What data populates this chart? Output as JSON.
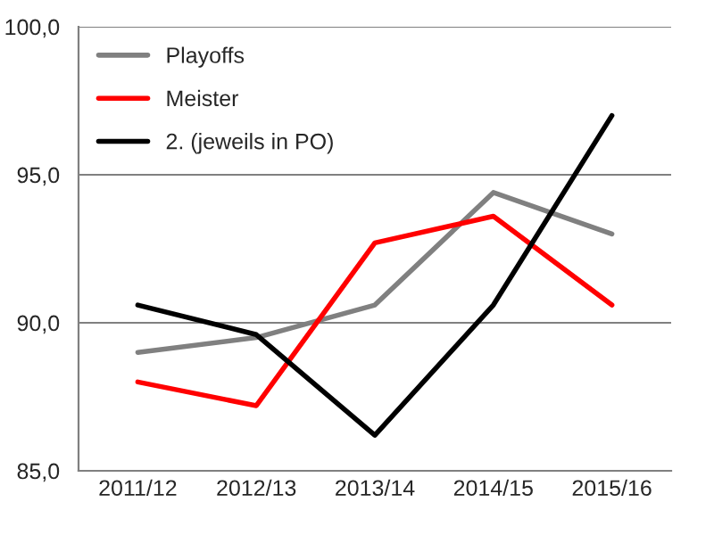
{
  "chart_data": {
    "type": "line",
    "categories": [
      "2011/12",
      "2012/13",
      "2013/14",
      "2014/15",
      "2015/16"
    ],
    "series": [
      {
        "name": "Playoffs",
        "color": "#808080",
        "values": [
          89.0,
          89.5,
          90.6,
          94.4,
          93.0
        ]
      },
      {
        "name": "Meister",
        "color": "#ff0000",
        "values": [
          88.0,
          87.2,
          92.7,
          93.6,
          90.6
        ]
      },
      {
        "name": "2. (jeweils in PO)",
        "color": "#000000",
        "values": [
          90.6,
          89.6,
          86.2,
          90.6,
          97.0
        ]
      }
    ],
    "ylim": [
      85,
      100
    ],
    "yticks": [
      {
        "value": 85,
        "label": "85,0"
      },
      {
        "value": 90,
        "label": "90,0"
      },
      {
        "value": 95,
        "label": "95,0"
      },
      {
        "value": 100,
        "label": "100,0"
      }
    ],
    "grid": "y",
    "legend": "top left",
    "marker": "none",
    "line_style": "solid"
  }
}
